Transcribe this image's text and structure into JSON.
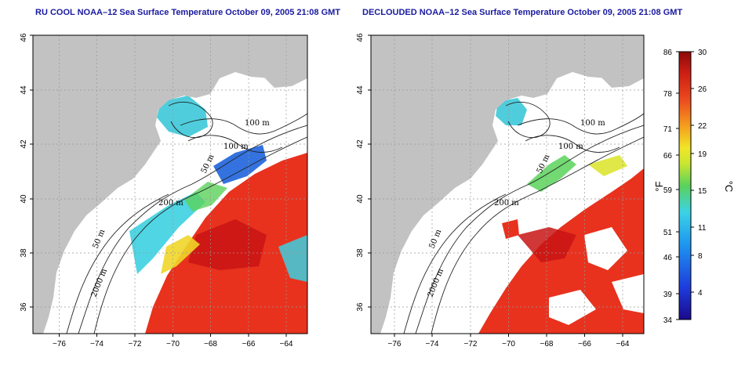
{
  "panels": [
    {
      "title": "RU COOL NOAA–12 Sea Surface Temperature October 09, 2005 21:08 GMT",
      "variant": "raw"
    },
    {
      "title": "DECLOUDED NOAA–12 Sea Surface Temperature October 09, 2005 21:08 GMT",
      "variant": "declouded"
    }
  ],
  "axes": {
    "x_ticks": [
      "−76",
      "−74",
      "−72",
      "−70",
      "−68",
      "−66",
      "−64"
    ],
    "y_ticks": [
      "36",
      "38",
      "40",
      "42",
      "44",
      "46"
    ],
    "xlim": [
      -77.5,
      -63
    ],
    "ylim": [
      35,
      46
    ]
  },
  "contour_labels": {
    "left": [
      "100 m",
      "100 m",
      "50 m",
      "200 m",
      "50 m",
      "2000 m"
    ],
    "right": [
      "100 m",
      "100 m",
      "50 m",
      "200 m",
      "50 m",
      "2000 m"
    ]
  },
  "colorbar": {
    "fahrenheit_ticks": [
      "86",
      "78",
      "71",
      "66",
      "59",
      "51",
      "46",
      "39",
      "34"
    ],
    "celsius_ticks": [
      "30",
      "26",
      "22",
      "19",
      "15",
      "11",
      "8",
      "4"
    ],
    "fahrenheit_unit": "°F",
    "celsius_unit": "°C",
    "range_c": [
      1,
      30
    ]
  },
  "colors": {
    "land": "#c2c2c2",
    "cloud": "#ffffff",
    "warm": "#e8321e",
    "hot": "#c81414",
    "mid": "#3cd0e0",
    "cool": "#1e50dc",
    "title": "#1a1aa0"
  }
}
